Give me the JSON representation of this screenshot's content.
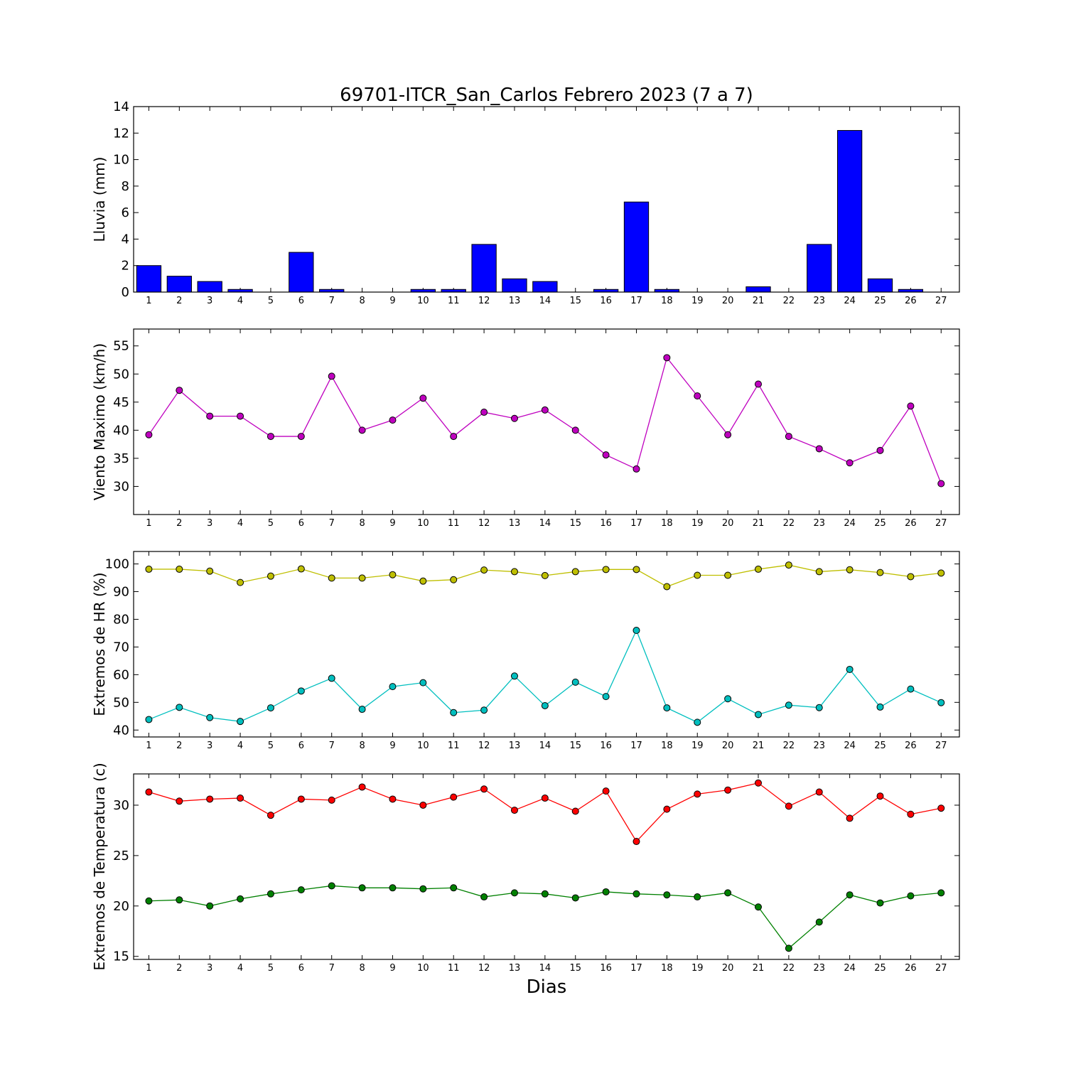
{
  "title": "69701-ITCR_San_Carlos Febrero 2023  (7 a 7)",
  "xlabel": "Dias",
  "chart_data": [
    {
      "type": "bar",
      "ylabel": "Lluvia (mm)",
      "ylim": [
        0,
        14
      ],
      "yticks": [
        "0",
        "2",
        "4",
        "6",
        "8",
        "10",
        "12",
        "14"
      ],
      "categories": [
        "1",
        "2",
        "3",
        "4",
        "5",
        "6",
        "7",
        "8",
        "9",
        "10",
        "11",
        "12",
        "13",
        "14",
        "15",
        "16",
        "17",
        "18",
        "19",
        "20",
        "21",
        "22",
        "23",
        "24",
        "25",
        "26",
        "27"
      ],
      "values": [
        2.0,
        1.2,
        0.8,
        0.2,
        0,
        3.0,
        0.2,
        0,
        0,
        0.2,
        0.2,
        3.6,
        1.0,
        0.8,
        0,
        0.2,
        6.8,
        0.2,
        0,
        0,
        0.4,
        0,
        3.6,
        12.2,
        1.0,
        0.2,
        0
      ],
      "color": "#0000ff"
    },
    {
      "type": "line",
      "ylabel": "Viento Maximo (km/h)",
      "ylim": [
        25,
        58
      ],
      "yticks": [
        "30",
        "35",
        "40",
        "45",
        "50",
        "55"
      ],
      "categories": [
        "1",
        "2",
        "3",
        "4",
        "5",
        "6",
        "7",
        "8",
        "9",
        "10",
        "11",
        "12",
        "13",
        "14",
        "15",
        "16",
        "17",
        "18",
        "19",
        "20",
        "21",
        "22",
        "23",
        "24",
        "25",
        "26",
        "27"
      ],
      "series": [
        {
          "color": "#bf00bf",
          "values": [
            39.2,
            47.1,
            42.5,
            42.5,
            38.9,
            38.9,
            49.6,
            40.0,
            41.8,
            45.7,
            38.9,
            43.2,
            42.1,
            43.6,
            40.0,
            35.6,
            33.1,
            52.9,
            46.1,
            39.2,
            48.2,
            38.9,
            36.7,
            34.2,
            36.4,
            44.3,
            30.5
          ]
        }
      ]
    },
    {
      "type": "line",
      "ylabel": "Extremos de HR (%)",
      "ylim": [
        37.5,
        104.5
      ],
      "yticks": [
        "40",
        "50",
        "60",
        "70",
        "80",
        "90",
        "100"
      ],
      "categories": [
        "1",
        "2",
        "3",
        "4",
        "5",
        "6",
        "7",
        "8",
        "9",
        "10",
        "11",
        "12",
        "13",
        "14",
        "15",
        "16",
        "17",
        "18",
        "19",
        "20",
        "21",
        "22",
        "23",
        "24",
        "25",
        "26",
        "27"
      ],
      "series": [
        {
          "color": "#bfbf00",
          "values": [
            98.1,
            98.1,
            97.4,
            93.3,
            95.6,
            98.2,
            94.9,
            94.9,
            96.1,
            93.8,
            94.3,
            97.8,
            97.2,
            95.8,
            97.2,
            98.0,
            98.0,
            91.8,
            95.9,
            95.9,
            98.1,
            99.6,
            97.2,
            97.9,
            96.9,
            95.4,
            96.7
          ]
        },
        {
          "color": "#00bfbf",
          "values": [
            43.8,
            48.2,
            44.5,
            43.1,
            48.0,
            54.1,
            58.7,
            47.5,
            55.7,
            57.1,
            46.3,
            47.2,
            59.5,
            48.8,
            57.3,
            52.1,
            76.0,
            48.0,
            42.8,
            51.3,
            45.6,
            49.0,
            48.1,
            61.9,
            48.3,
            54.8,
            49.9
          ]
        }
      ]
    },
    {
      "type": "line",
      "ylabel": "Extremos de Temperatura (c)",
      "ylim": [
        14.7,
        33.1
      ],
      "yticks": [
        "15",
        "20",
        "25",
        "30"
      ],
      "categories": [
        "1",
        "2",
        "3",
        "4",
        "5",
        "6",
        "7",
        "8",
        "9",
        "10",
        "11",
        "12",
        "13",
        "14",
        "15",
        "16",
        "17",
        "18",
        "19",
        "20",
        "21",
        "22",
        "23",
        "24",
        "25",
        "26",
        "27"
      ],
      "series": [
        {
          "color": "#ff0000",
          "values": [
            31.3,
            30.4,
            30.6,
            30.7,
            29.0,
            30.6,
            30.5,
            31.8,
            30.6,
            30.0,
            30.8,
            31.6,
            29.5,
            30.7,
            29.4,
            31.4,
            26.4,
            29.6,
            31.1,
            31.5,
            32.2,
            29.9,
            31.3,
            28.7,
            30.9,
            29.1,
            29.7
          ]
        },
        {
          "color": "#008000",
          "values": [
            20.5,
            20.6,
            20.0,
            20.7,
            21.2,
            21.6,
            22.0,
            21.8,
            21.8,
            21.7,
            21.8,
            20.9,
            21.3,
            21.2,
            20.8,
            21.4,
            21.2,
            21.1,
            20.9,
            21.3,
            19.9,
            15.8,
            18.4,
            21.1,
            20.3,
            21.0,
            21.3
          ]
        }
      ]
    }
  ]
}
